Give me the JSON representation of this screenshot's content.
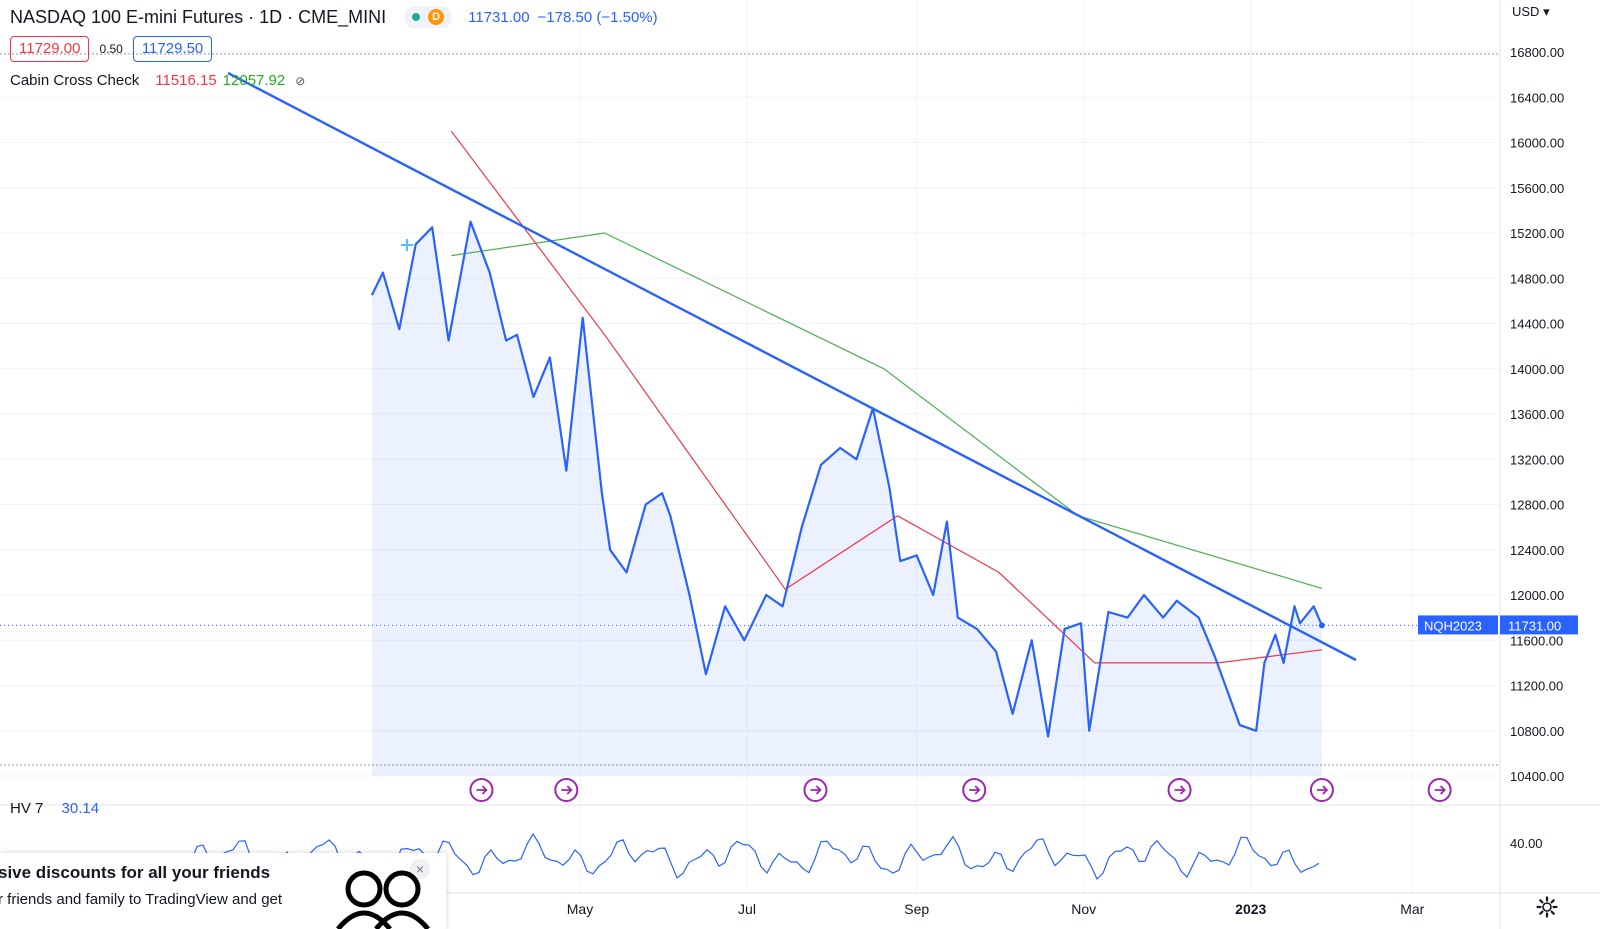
{
  "header": {
    "symbol_title": "NASDAQ 100 E-mini Futures · 1D · CME_MINI",
    "market_status_badge": "D",
    "last_price": "11731.00",
    "change": "−178.50 (−1.50%)"
  },
  "quote": {
    "bid": "11729.00",
    "spread": "0.50",
    "ask": "11729.50"
  },
  "indicator": {
    "name": "Cabin Cross Check",
    "value_red": "11516.15",
    "value_green": "12057.92"
  },
  "currency": "USD",
  "price_tag": {
    "symbol": "NQH2023",
    "value": "11731.00"
  },
  "hv_panel": {
    "label": "HV 7",
    "value": "30.14",
    "axis_label": "40.00"
  },
  "promo": {
    "headline": "sive discounts for all your friends",
    "body": "r friends and family to TradingView and get"
  },
  "colors": {
    "price_line": "#2962ff",
    "ma_fast": "#f23645",
    "ma_slow": "#4caf50",
    "trendline": "#2962ff",
    "hv_line": "#2962ff",
    "event_icon": "#9c27b0"
  },
  "chart_data": {
    "type": "line",
    "title": "NASDAQ 100 E-mini Futures · 1D · CME_MINI",
    "x_tick_labels": [
      "May",
      "Jul",
      "Sep",
      "Nov",
      "2023",
      "Mar"
    ],
    "y_tick_labels": [
      "16800.00",
      "16400.00",
      "16000.00",
      "15600.00",
      "15200.00",
      "14800.00",
      "14400.00",
      "14000.00",
      "13600.00",
      "13200.00",
      "12800.00",
      "12400.00",
      "12000.00",
      "11600.00",
      "11200.00",
      "10800.00",
      "10400.00"
    ],
    "ylim": [
      10400,
      16800
    ],
    "grid": true,
    "series": [
      {
        "key": "price",
        "x": [
          "2022-02-14",
          "2022-02-18",
          "2022-02-24",
          "2022-03-02",
          "2022-03-08",
          "2022-03-14",
          "2022-03-22",
          "2022-03-29",
          "2022-04-04",
          "2022-04-08",
          "2022-04-14",
          "2022-04-20",
          "2022-04-26",
          "2022-05-02",
          "2022-05-09",
          "2022-05-12",
          "2022-05-18",
          "2022-05-25",
          "2022-05-31",
          "2022-06-03",
          "2022-06-10",
          "2022-06-16",
          "2022-06-23",
          "2022-06-30",
          "2022-07-08",
          "2022-07-14",
          "2022-07-21",
          "2022-07-28",
          "2022-08-04",
          "2022-08-10",
          "2022-08-16",
          "2022-08-22",
          "2022-08-26",
          "2022-09-01",
          "2022-09-07",
          "2022-09-12",
          "2022-09-16",
          "2022-09-23",
          "2022-09-30",
          "2022-10-06",
          "2022-10-13",
          "2022-10-19",
          "2022-10-25",
          "2022-10-31",
          "2022-11-03",
          "2022-11-10",
          "2022-11-17",
          "2022-11-23",
          "2022-11-30",
          "2022-12-05",
          "2022-12-13",
          "2022-12-19",
          "2022-12-28",
          "2023-01-03",
          "2023-01-06",
          "2023-01-10",
          "2023-01-13",
          "2023-01-17",
          "2023-01-19",
          "2023-01-24",
          "2023-01-27"
        ],
        "values": [
          14650,
          14850,
          14350,
          15100,
          15250,
          14250,
          15300,
          14850,
          14250,
          14300,
          13750,
          14100,
          13100,
          14450,
          12900,
          12400,
          12200,
          12800,
          12900,
          12700,
          12000,
          11300,
          11900,
          11600,
          12000,
          11900,
          12600,
          13150,
          13300,
          13200,
          13650,
          12950,
          12300,
          12350,
          12000,
          12650,
          11800,
          11700,
          11500,
          10950,
          11600,
          10750,
          11700,
          11750,
          10800,
          11850,
          11800,
          12000,
          11800,
          11950,
          11800,
          11450,
          10850,
          10800,
          11400,
          11650,
          11400,
          11900,
          11750,
          11900,
          11731
        ]
      },
      {
        "key": "ma_fast",
        "x": [
          "2022-03-15",
          "2022-05-10",
          "2022-07-15",
          "2022-08-25",
          "2022-10-01",
          "2022-11-05",
          "2022-12-20",
          "2023-01-27"
        ],
        "values": [
          16100,
          14300,
          12050,
          12700,
          12200,
          11400,
          11400,
          11516
        ]
      },
      {
        "key": "ma_slow",
        "x": [
          "2022-03-15",
          "2022-05-10",
          "2022-08-20",
          "2022-10-30",
          "2023-01-27"
        ],
        "values": [
          15000,
          15200,
          14000,
          12700,
          12058
        ]
      }
    ]
  }
}
